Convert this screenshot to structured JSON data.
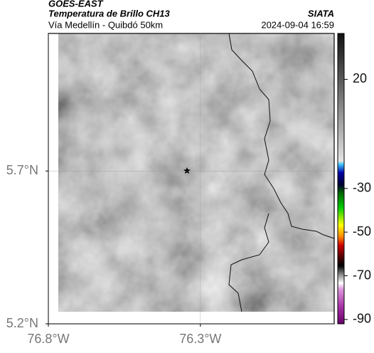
{
  "header": {
    "source": "GOES-EAST",
    "title": "Temperatura de Brillo CH13",
    "subtitle": "Vía Medellín - Quibdó 50km",
    "org": "SIATA",
    "datetime": "2024-09-04 16:59"
  },
  "map": {
    "xlim": [
      -76.8,
      -75.86
    ],
    "ylim": [
      5.2,
      6.15
    ],
    "xticks": [
      {
        "value": -76.8,
        "label": "76.8°W"
      },
      {
        "value": -76.3,
        "label": "76.3°W"
      }
    ],
    "yticks": [
      {
        "value": 5.7,
        "label": "5.7°N"
      },
      {
        "value": 5.2,
        "label": "5.2°N"
      }
    ],
    "grid": true
  },
  "colorbar": {
    "lim": [
      -92,
      41
    ],
    "ticks": [
      20,
      -30,
      -50,
      -70,
      -90
    ]
  }
}
